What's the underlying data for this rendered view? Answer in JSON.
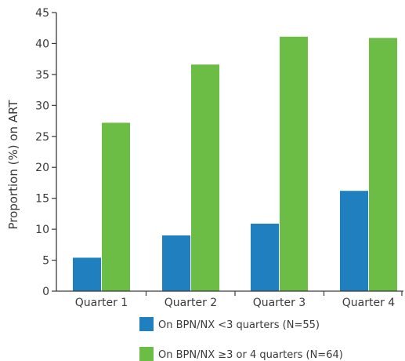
{
  "chart_data": {
    "type": "bar",
    "categories": [
      "Quarter 1",
      "Quarter 2",
      "Quarter 3",
      "Quarter 4"
    ],
    "series": [
      {
        "name": "On BPN/NX <3 quarters (N=55)",
        "color": "#1f7fbf",
        "values": [
          5.4,
          9.0,
          10.9,
          16.2
        ]
      },
      {
        "name": "On BPN/NX ≥3 or 4 quarters (N=64)",
        "color": "#6cbd45",
        "values": [
          27.2,
          36.6,
          41.1,
          40.9
        ]
      }
    ],
    "xlabel": "",
    "ylabel": "Proportion (%) on ART",
    "ylim": [
      0,
      45
    ],
    "yticks": [
      0,
      5,
      10,
      15,
      20,
      25,
      30,
      35,
      40,
      45
    ],
    "grid": false,
    "legend_position": "bottom"
  }
}
